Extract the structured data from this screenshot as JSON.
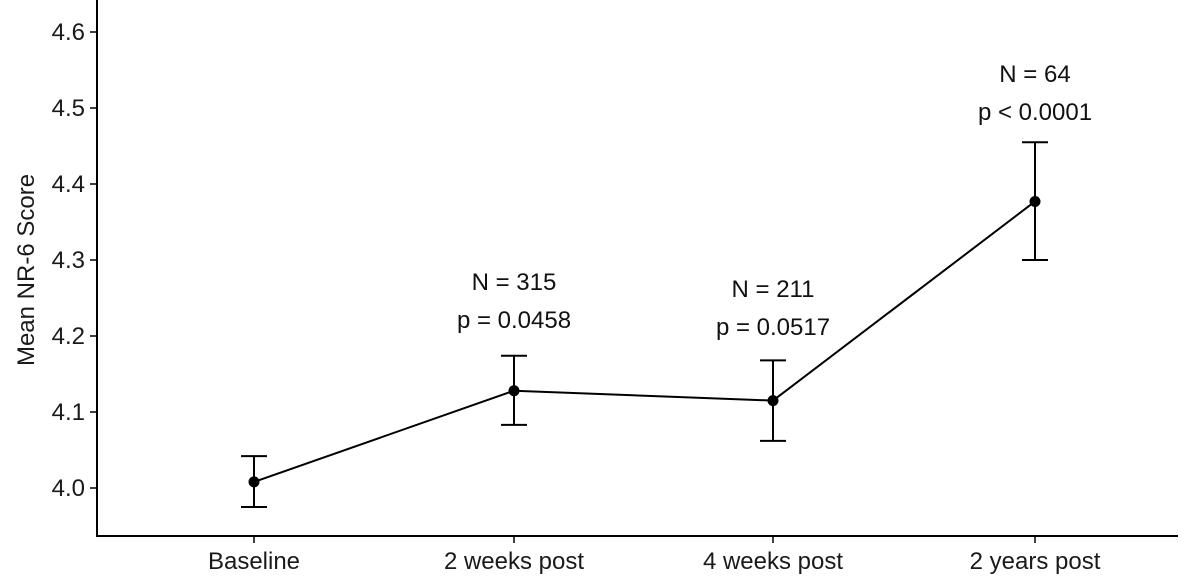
{
  "chart_data": {
    "type": "line",
    "title": "",
    "xlabel": "",
    "ylabel": "Mean NR-6 Score",
    "ylim": [
      3.94,
      4.62
    ],
    "yticks": [
      "4.0",
      "4.1",
      "4.2",
      "4.3",
      "4.4",
      "4.5",
      "4.6"
    ],
    "ytick_values": [
      4.0,
      4.1,
      4.2,
      4.3,
      4.4,
      4.5,
      4.6
    ],
    "categories": [
      "Baseline",
      "2 weeks post",
      "4 weeks post",
      "2 years post"
    ],
    "grid": false,
    "legend": "none",
    "series": [
      {
        "values": [
          4.008,
          4.128,
          4.115,
          4.377
        ],
        "err_low": [
          3.975,
          4.083,
          4.062,
          4.3
        ],
        "err_high": [
          4.042,
          4.174,
          4.168,
          4.455
        ]
      }
    ],
    "annotations": [
      {
        "category": "2 weeks post",
        "lines": [
          "N = 315",
          "p = 0.0458"
        ]
      },
      {
        "category": "4 weeks post",
        "lines": [
          "N = 211",
          "p = 0.0517"
        ]
      },
      {
        "category": "2 years post",
        "lines": [
          "N = 64",
          "p < 0.0001"
        ]
      }
    ]
  }
}
